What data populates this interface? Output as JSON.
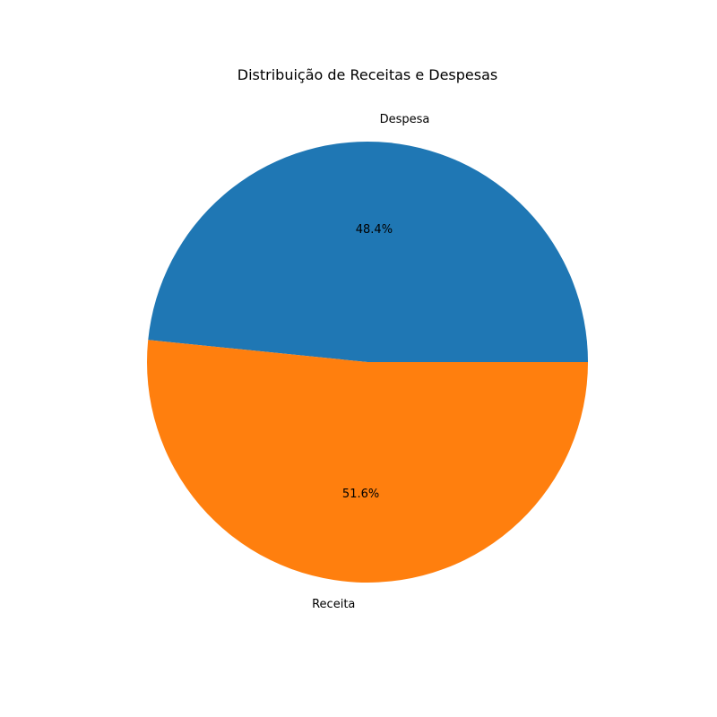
{
  "chart_data": {
    "type": "pie",
    "title": "Distribuição de Receitas e Despesas",
    "slices": [
      {
        "label": "Despesa",
        "value": 48.4,
        "pct_label": "48.4%",
        "color": "#1f77b4"
      },
      {
        "label": "Receita",
        "value": 51.6,
        "pct_label": "51.6%",
        "color": "#ff7f0e"
      }
    ],
    "start_angle_deg": 0,
    "direction": "counterclockwise",
    "legend": "none"
  }
}
